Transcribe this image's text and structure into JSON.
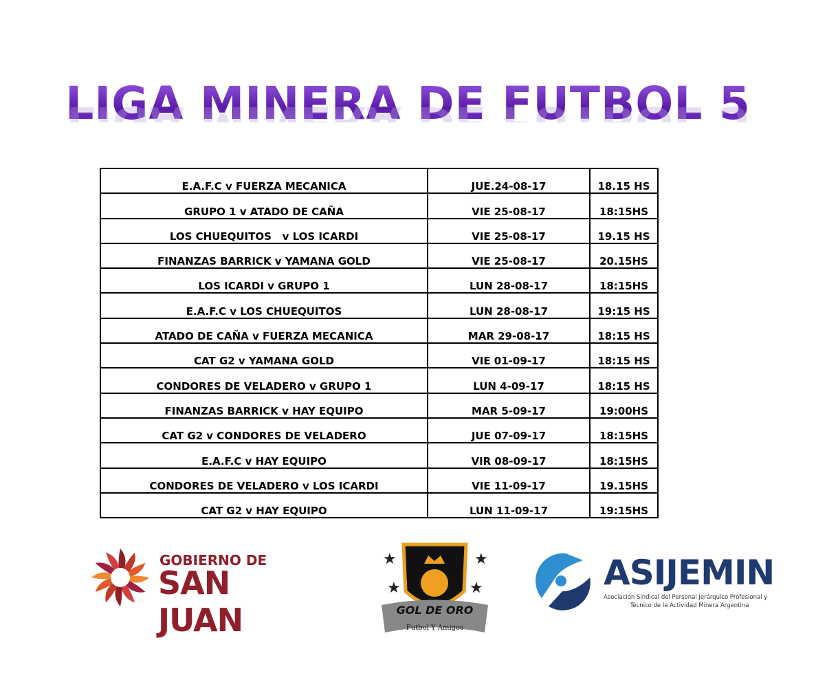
{
  "title": "LIGA MINERA DE FUTBOL 5",
  "matches": [
    {
      "match": "E.A.F.C v FUERZA MECANICA",
      "date": "JUE.24-08-17",
      "time": "18.15 HS"
    },
    {
      "match": "GRUPO 1 v ATADO DE CAÑA",
      "date": "VIE 25-08-17",
      "time": "18:15HS"
    },
    {
      "match": "LOS CHUEQUITOS   v LOS ICARDI",
      "date": "VIE 25-08-17",
      "time": "19.15 HS"
    },
    {
      "match": "FINANZAS BARRICK v YAMANA GOLD",
      "date": "VIE 25-08-17",
      "time": "20.15HS"
    },
    {
      "match": "LOS ICARDI v GRUPO 1",
      "date": "LUN 28-08-17",
      "time": "18:15HS"
    },
    {
      "match": "E.A.F.C v LOS CHUEQUITOS",
      "date": "LUN 28-08-17",
      "time": "19:15 HS"
    },
    {
      "match": "ATADO DE CAÑA v FUERZA MECANICA",
      "date": "MAR 29-08-17",
      "time": "18:15 HS"
    },
    {
      "match": "CAT G2 v YAMANA GOLD",
      "date": "VIE 01-09-17",
      "time": "18:15 HS"
    },
    {
      "match": "CONDORES DE VELADERO v GRUPO 1",
      "date": "LUN 4-09-17",
      "time": "18:15 HS"
    },
    {
      "match": "FINANZAS BARRICK v HAY EQUIPO",
      "date": "MAR 5-09-17",
      "time": "19:00HS"
    },
    {
      "match": "CAT G2 v CONDORES DE VELADERO",
      "date": "JUE 07-09-17",
      "time": "18:15HS"
    },
    {
      "match": "E.A.F.C v HAY EQUIPO",
      "date": "VIR 08-09-17",
      "time": "18:15HS"
    },
    {
      "match": "CONDORES DE VELADERO v LOS ICARDI",
      "date": "VIE 11-09-17",
      "time": "19.15HS"
    },
    {
      "match": "CAT G2 v HAY EQUIPO",
      "date": "LUN 11-09-17",
      "time": "19:15HS"
    }
  ],
  "logos": {
    "san_juan": {
      "line1": "GOBIERNO DE",
      "line2": "SAN JUAN",
      "color": "#8f1f2a"
    },
    "gol_de_oro": {
      "name": "GOL DE ORO",
      "tagline": "Futbol Y Amigos",
      "color": "#f0a020"
    },
    "asijemin": {
      "name": "ASIJEMIN",
      "subtitle1": "Asociación Sindical del Personal Jerárquico Profesional y",
      "subtitle2": "Técnico de la Actividad Minera Argentina",
      "color": "#1f3a6e",
      "accent": "#2f8fd0"
    }
  }
}
